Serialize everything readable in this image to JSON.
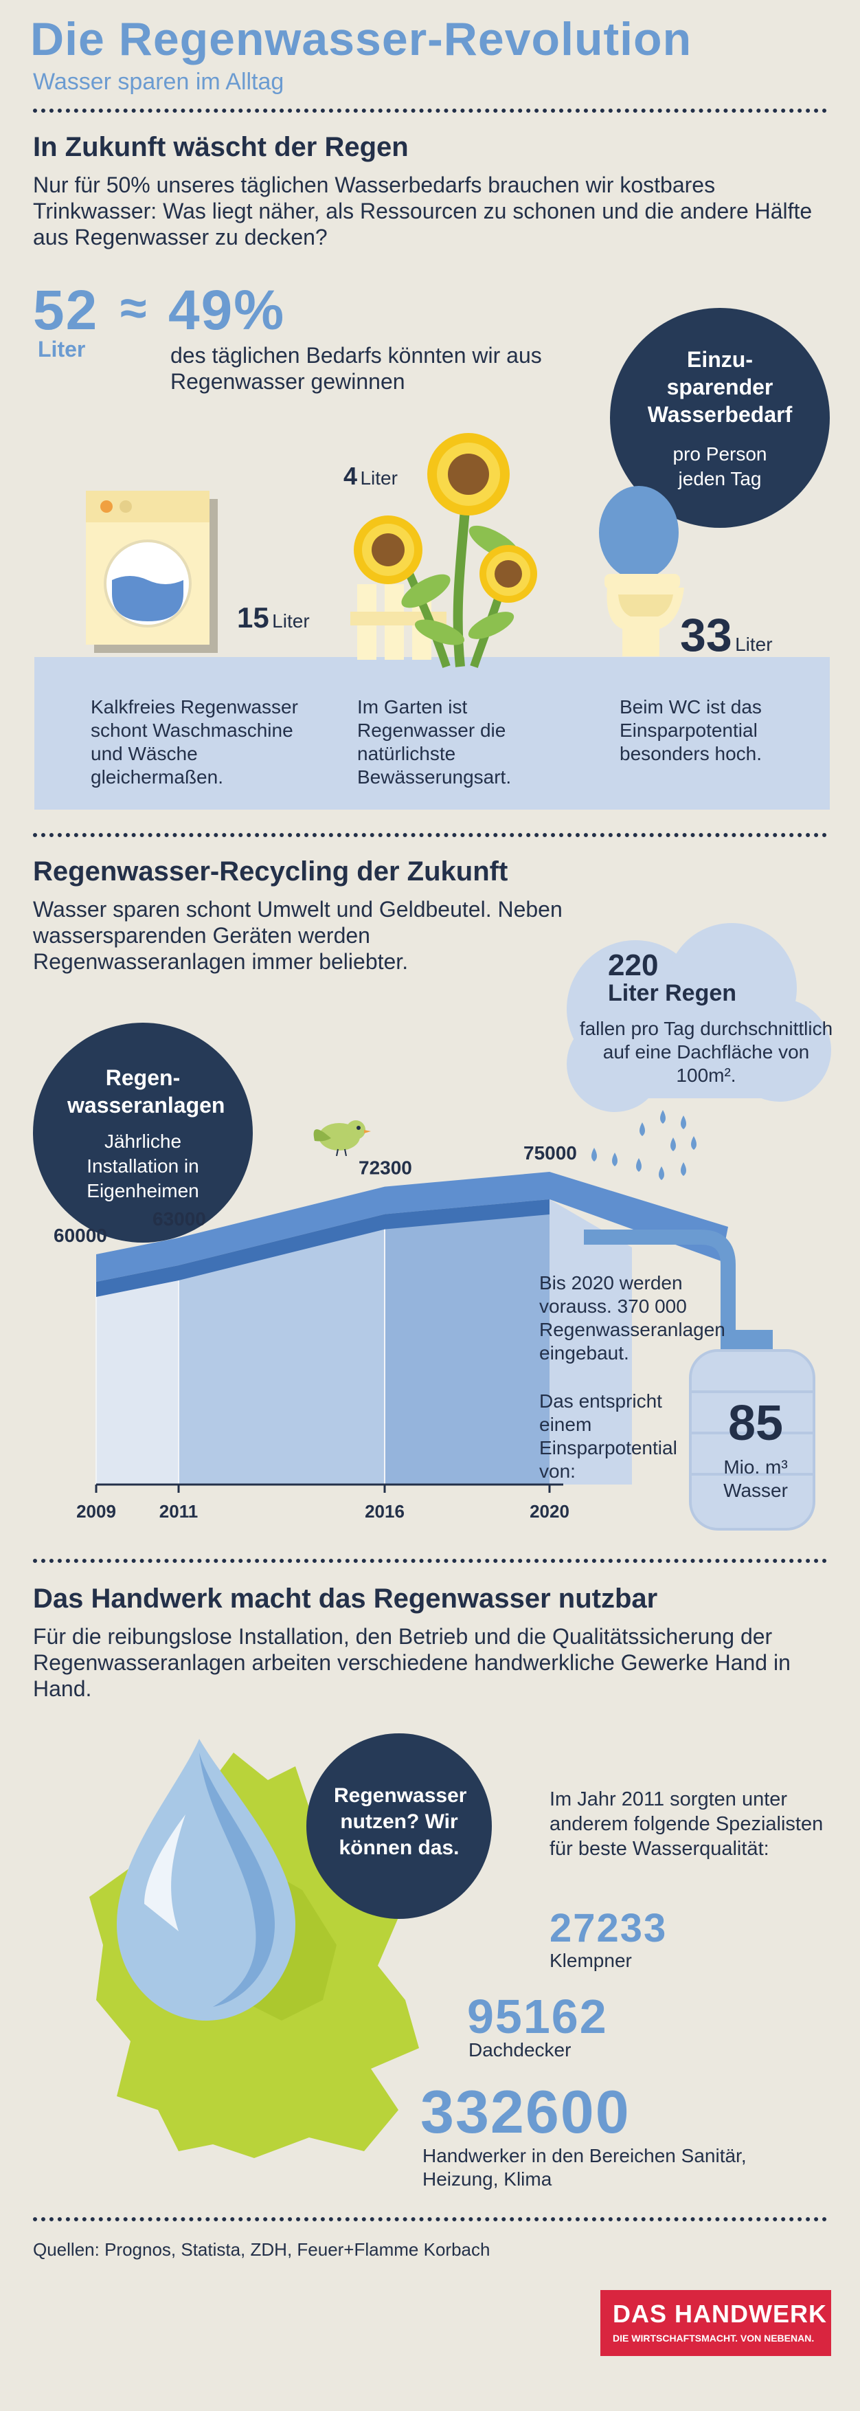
{
  "header": {
    "title": "Die Regenwasser-Revolution",
    "subtitle": "Wasser sparen im Alltag"
  },
  "section1": {
    "heading": "In Zukunft wäscht der Regen",
    "intro": "Nur für 50% unseres täglichen Wasserbedarfs brauchen wir kostbares Trinkwasser: Was liegt näher, als Ressourcen zu schonen und die andere Hälfte aus Regenwasser zu decken?",
    "liters_value": "52",
    "liters_unit": "Liter",
    "approx": "≈",
    "percent": "49%",
    "percent_text": "des täglichen Bedarfs könnten wir aus Regenwasser gewinnen",
    "circle_title": "Einzu-sparender Wasserbedarf",
    "circle_sub": "pro Person jeden Tag",
    "items": [
      {
        "value": "15",
        "unit": "Liter",
        "caption": "Kalkfreies Regenwasser schont Waschmaschine und Wäsche gleichermaßen."
      },
      {
        "value": "4",
        "unit": "Liter",
        "caption": "Im Garten ist Regenwasser die natürlichste Bewässerungsart."
      },
      {
        "value": "33",
        "unit": "Liter",
        "caption": "Beim WC ist das Einsparpotential besonders hoch."
      }
    ]
  },
  "section2": {
    "heading": "Regenwasser-Recycling der Zukunft",
    "intro": "Wasser sparen schont Umwelt und Geldbeutel. Neben wassersparenden Geräten werden Regenwasseranlagen immer beliebter.",
    "circle_title": "Regen-wasseranlagen",
    "circle_sub": "Jährliche Installation in Eigenheimen",
    "cloud_value": "220",
    "cloud_title": "Liter Regen",
    "cloud_text": "fallen pro Tag durchschnittlich auf eine Dachfläche von 100m².",
    "forecast_text": "Bis 2020 werden vorauss. 370 000 Regenwasseranlagen eingebaut.",
    "savings_text": "Das entspricht einem Einsparpotential von:",
    "tank_value": "85",
    "tank_unit": "Mio. m³ Wasser"
  },
  "chart_data": {
    "type": "area",
    "x": [
      "2009",
      "2011",
      "2016",
      "2020"
    ],
    "series": [
      {
        "values": [
          60000,
          63000,
          72300,
          75000
        ]
      }
    ],
    "labels": [
      "60000",
      "63000",
      "72300",
      "75000"
    ],
    "xlabel": "",
    "ylabel": ""
  },
  "section3": {
    "heading": "Das Handwerk macht das Regenwasser nutzbar",
    "intro": "Für die reibungslose Installation, den Betrieb und die Qualitätssicherung der Regenwasseranlagen arbeiten verschiedene handwerkliche Gewerke Hand in Hand.",
    "circle_text": "Regenwasser nutzen? Wir können das.",
    "year_text": "Im Jahr 2011 sorgten unter anderem folgende Spezialisten für beste Wasserqualität:",
    "stats": [
      {
        "value": "27233",
        "label": "Klempner"
      },
      {
        "value": "95162",
        "label": "Dachdecker"
      },
      {
        "value": "332600",
        "label": "Handwerker in den Bereichen Sanitär, Heizung, Klima"
      }
    ]
  },
  "footer": {
    "sources": "Quellen: Prognos, Statista, ZDH, Feuer+Flamme Korbach",
    "logo_main": "DAS HANDWERK",
    "logo_sub": "DIE WIRTSCHAFTSMACHT. VON NEBENAN."
  },
  "colors": {
    "navy": "#263a57",
    "accent_blue": "#6b9bd1",
    "panel_blue": "#c9d7eb",
    "background": "#ebe8df",
    "logo_red": "#d9253f"
  }
}
